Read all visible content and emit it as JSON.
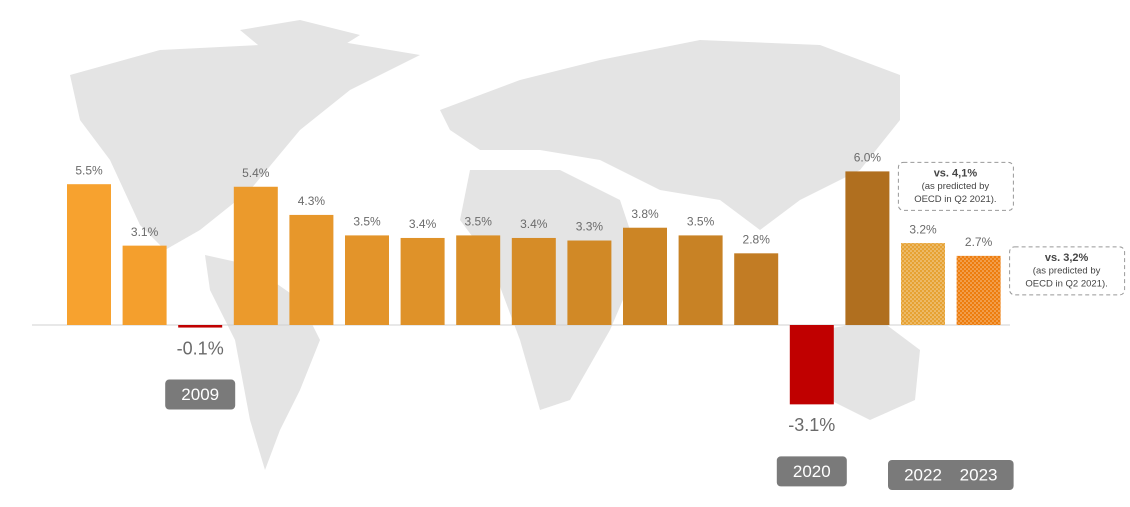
{
  "chart_data": {
    "type": "bar",
    "categories": [
      null,
      null,
      "2009",
      null,
      null,
      null,
      null,
      null,
      null,
      null,
      null,
      null,
      null,
      "2020",
      null,
      "2022",
      "2023"
    ],
    "values": [
      5.5,
      3.1,
      -0.1,
      5.4,
      4.3,
      3.5,
      3.4,
      3.5,
      3.4,
      3.3,
      3.8,
      3.5,
      2.8,
      -3.1,
      6.0,
      3.2,
      2.7
    ],
    "value_labels": [
      "5.5%",
      "3.1%",
      "-0.1%",
      "5.4%",
      "4.3%",
      "3.5%",
      "3.4%",
      "3.5%",
      "3.4%",
      "3.3%",
      "3.8%",
      "3.5%",
      "2.8%",
      "-3.1%",
      "6.0%",
      "3.2%",
      "2.7%"
    ],
    "colors": [
      "#f7a22f",
      "#f49f2d",
      "#c00000",
      "#eb9a2c",
      "#e7972b",
      "#e3942a",
      "#df9229",
      "#da8f28",
      "#d68c27",
      "#d18926",
      "#cc8525",
      "#c88225",
      "#c27c24",
      "#c00000",
      "#b06f1f",
      "#e6a233",
      "#ed7d0e"
    ],
    "hatched": [
      false,
      false,
      false,
      false,
      false,
      false,
      false,
      false,
      false,
      false,
      false,
      false,
      false,
      false,
      false,
      true,
      true
    ],
    "annotations": [
      {
        "bar": 14,
        "lines": [
          "vs. 4,1%",
          "(as predicted by",
          "OECD in Q2 2021)."
        ]
      },
      {
        "bar": 16,
        "lines": [
          "vs. 3,2%",
          "(as predicted by",
          "OECD in Q2 2021)."
        ]
      }
    ]
  }
}
